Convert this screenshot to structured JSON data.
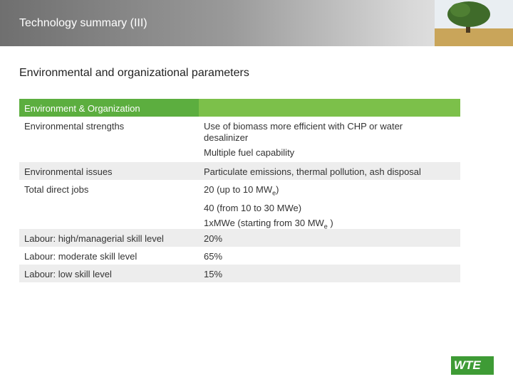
{
  "header": {
    "title": "Technology summary (III)"
  },
  "subtitle": "Environmental and organizational parameters",
  "table": {
    "header": [
      "Environment & Organization"
    ],
    "rows": [
      {
        "label": "Environmental strengths",
        "lines": [
          "Use of biomass more efficient with CHP or water desalinizer",
          "Multiple fuel capability"
        ]
      },
      {
        "label": "Environmental issues",
        "lines": [
          "Particulate emissions, thermal pollution, ash disposal"
        ]
      },
      {
        "label": "Total direct jobs",
        "lines": [
          {
            "text": "20 (up to 10 MW",
            "sub": "e",
            "after": ")"
          },
          "40  (from 10 to 30 MWe)",
          {
            "text": "1xMWe  (starting from 30 MW",
            "sub": "e",
            "after": " )"
          }
        ]
      },
      {
        "label": "Labour: high/managerial skill level",
        "lines": [
          "20%"
        ]
      },
      {
        "label": "Labour: moderate skill level",
        "lines": [
          "65%"
        ]
      },
      {
        "label": "Labour: low skill level",
        "lines": [
          "15%"
        ]
      }
    ]
  },
  "logo": "WTE"
}
